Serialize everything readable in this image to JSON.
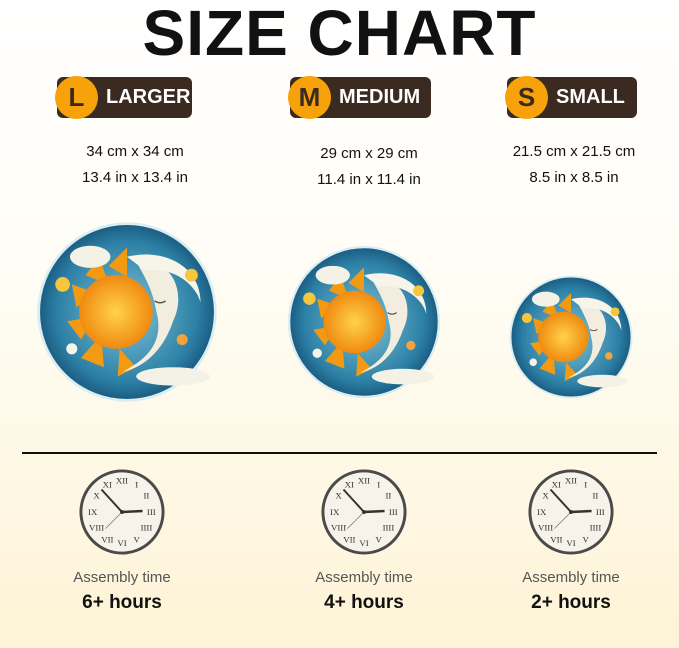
{
  "title": "SIZE CHART",
  "sizes": [
    {
      "letter": "L",
      "label": "LARGER",
      "cm": "34 cm x 34 cm",
      "in": "13.4 in x 13.4 in",
      "time_label": "Assembly time",
      "time": "6+ hours"
    },
    {
      "letter": "M",
      "label": "MEDIUM",
      "cm": "29 cm x 29 cm",
      "in": "11.4 in x 11.4 in",
      "time_label": "Assembly time",
      "time": "4+ hours"
    },
    {
      "letter": "S",
      "label": "SMALL",
      "cm": "21.5 cm x 21.5 cm",
      "in": "8.5 in x 8.5 in",
      "time_label": "Assembly time",
      "time": "2+ hours"
    }
  ],
  "colors": {
    "badge_bg": "#3a2a20",
    "badge_circle": "#f7a20a"
  },
  "icons": [
    "sun-moon-puzzle-image",
    "clock-icon"
  ]
}
